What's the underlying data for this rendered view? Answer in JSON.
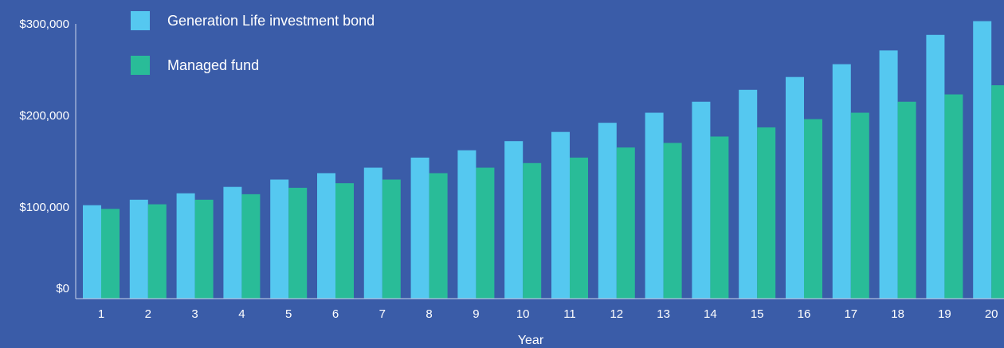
{
  "chart_data": {
    "type": "bar",
    "categories": [
      "1",
      "2",
      "3",
      "4",
      "5",
      "6",
      "7",
      "8",
      "9",
      "10",
      "11",
      "12",
      "13",
      "14",
      "15",
      "16",
      "17",
      "18",
      "19",
      "20"
    ],
    "series": [
      {
        "name": "Generation Life investment bond",
        "color": "#55c8f0",
        "values": [
          102000,
          108000,
          115000,
          122000,
          130000,
          137000,
          143000,
          154000,
          162000,
          172000,
          182000,
          192000,
          203000,
          215000,
          228000,
          242000,
          256000,
          271000,
          288000,
          303000
        ]
      },
      {
        "name": "Managed fund",
        "color": "#29bc98",
        "values": [
          98000,
          103000,
          108000,
          114000,
          121000,
          126000,
          130000,
          137000,
          143000,
          148000,
          154000,
          165000,
          170000,
          177000,
          187000,
          196000,
          203000,
          215000,
          223000,
          233000
        ]
      }
    ],
    "xlabel": "Year",
    "ylabel": "",
    "ylim": [
      0,
      300000
    ],
    "yticks": [
      {
        "value": 0,
        "label": "$0"
      },
      {
        "value": 100000,
        "label": "$100,000"
      },
      {
        "value": 200000,
        "label": "$200,000"
      },
      {
        "value": 300000,
        "label": "$300,000"
      }
    ],
    "grid": false,
    "legend_position": "top-left"
  }
}
